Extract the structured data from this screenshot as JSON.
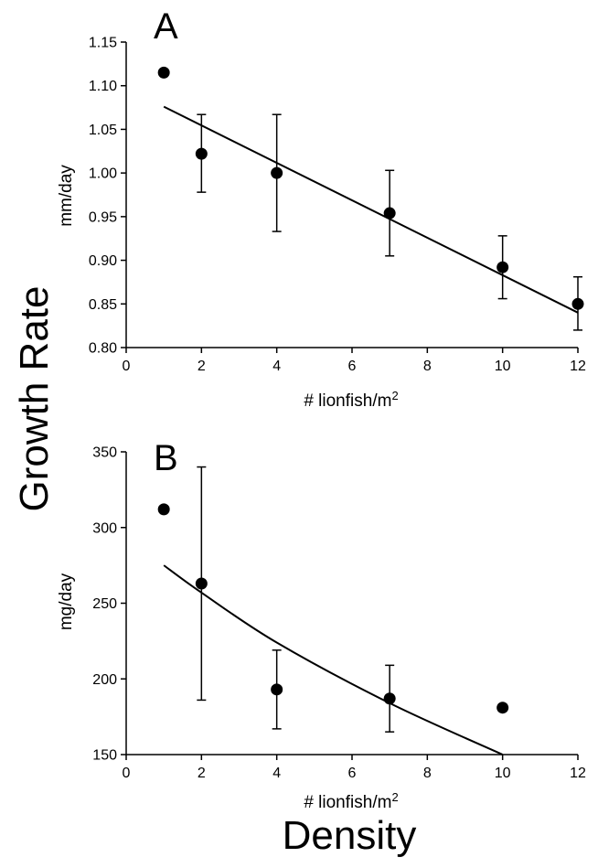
{
  "figure": {
    "y_label": "Growth Rate",
    "x_label": "Density"
  },
  "chart_data": [
    {
      "type": "scatter",
      "panel": "A",
      "ylabel": "mm/day",
      "xlabel_main": "# lionfish/m",
      "xlabel_sup": "2",
      "xlim": [
        0,
        12
      ],
      "ylim": [
        0.8,
        1.15
      ],
      "xticks": [
        "0",
        "2",
        "4",
        "6",
        "8",
        "10",
        "12"
      ],
      "yticks": [
        "0.80",
        "0.85",
        "0.90",
        "0.95",
        "1.00",
        "1.05",
        "1.10",
        "1.15"
      ],
      "x": [
        1,
        2,
        4,
        7,
        10,
        12
      ],
      "y": [
        1.115,
        1.022,
        1.0,
        0.954,
        0.892,
        0.85
      ],
      "err_low": [
        null,
        0.978,
        0.933,
        0.905,
        0.856,
        0.82
      ],
      "err_high": [
        null,
        1.067,
        1.067,
        1.003,
        0.928,
        0.881
      ],
      "fit": {
        "kind": "linear",
        "x": [
          1,
          12
        ],
        "y": [
          1.076,
          0.84
        ]
      }
    },
    {
      "type": "scatter",
      "panel": "B",
      "ylabel": "mg/day",
      "xlabel_main": "# lionfish/m",
      "xlabel_sup": "2",
      "xlim": [
        0,
        12
      ],
      "ylim": [
        150,
        350
      ],
      "xticks": [
        "0",
        "2",
        "4",
        "6",
        "8",
        "10",
        "12"
      ],
      "yticks": [
        "150",
        "200",
        "250",
        "300",
        "350"
      ],
      "x": [
        1,
        2,
        4,
        7,
        10
      ],
      "y": [
        312,
        263,
        193,
        187,
        181
      ],
      "err_low": [
        null,
        186,
        167,
        165,
        null
      ],
      "err_high": [
        null,
        340,
        219,
        209,
        null
      ],
      "fit": {
        "kind": "curve",
        "x": [
          1,
          2,
          4,
          7,
          10
        ],
        "y": [
          275,
          257,
          224,
          184,
          150
        ]
      }
    }
  ]
}
